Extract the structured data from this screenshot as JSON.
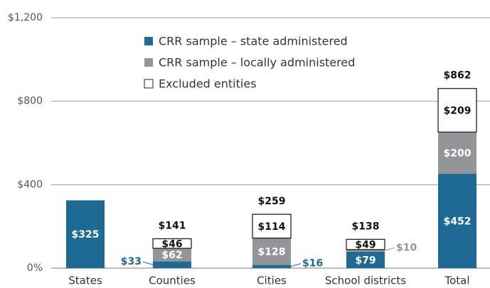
{
  "chart_data": {
    "type": "stacked-bar",
    "categories": [
      "States",
      "Counties",
      "Cities",
      "School districts",
      "Total"
    ],
    "series": [
      {
        "name": "CRR sample – state administered",
        "color": "#1f6a94",
        "values": [
          325,
          33,
          16,
          79,
          452
        ],
        "value_labels": [
          "$325",
          "$33",
          "$16",
          "$79",
          "$452"
        ]
      },
      {
        "name": "CRR sample – locally administered",
        "color": "#939598",
        "values": [
          null,
          62,
          128,
          10,
          200
        ],
        "value_labels": [
          null,
          "$62",
          "$128",
          "$10",
          "$200"
        ]
      },
      {
        "name": "Excluded entities",
        "color": "#ffffff",
        "values": [
          null,
          46,
          114,
          49,
          209
        ],
        "value_labels": [
          null,
          "$46",
          "$114",
          "$49",
          "$209"
        ]
      }
    ],
    "totals": {
      "values": [
        null,
        141,
        259,
        138,
        862
      ],
      "value_labels": [
        null,
        "$141",
        "$259",
        "$138",
        "$862"
      ]
    },
    "ylim": [
      0,
      1200
    ],
    "yticks": [
      {
        "value": 0,
        "label": "0%"
      },
      {
        "value": 400,
        "label": "$400"
      },
      {
        "value": 800,
        "label": "$800"
      },
      {
        "value": 1200,
        "label": "$1,200"
      }
    ],
    "grid": true
  }
}
